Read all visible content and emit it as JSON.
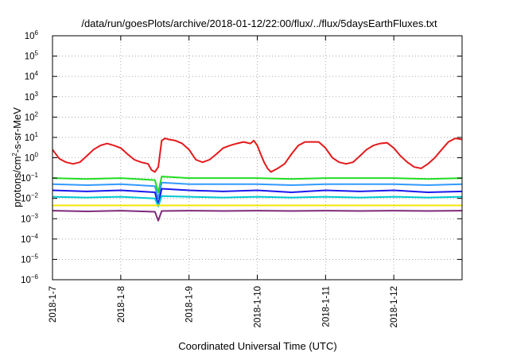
{
  "chart_data": {
    "type": "line",
    "title": "/data/run/goesPlots/archive/2018-01-12/22:00/flux/../flux/5daysEarthFluxes.txt",
    "xlabel": "Coordinated Universal Time (UTC)",
    "ylabel": {
      "prefix": "protons/cm",
      "sup": "2",
      "suffix": "-s-sr-MeV"
    },
    "yscale": "log",
    "ylim": [
      1e-06,
      1000000.0
    ],
    "xlim": [
      0,
      6
    ],
    "grid": true,
    "x_ticks": [
      {
        "x": 0,
        "label": "2018-1-7"
      },
      {
        "x": 1,
        "label": "2018-1-8"
      },
      {
        "x": 2,
        "label": "2018-1-9"
      },
      {
        "x": 3,
        "label": "2018-1-10"
      },
      {
        "x": 4,
        "label": "2018-1-11"
      },
      {
        "x": 5,
        "label": "2018-1-12"
      }
    ],
    "y_ticks": [
      {
        "exp": -6
      },
      {
        "exp": -5
      },
      {
        "exp": -4
      },
      {
        "exp": -3
      },
      {
        "exp": -2
      },
      {
        "exp": -1
      },
      {
        "exp": 0
      },
      {
        "exp": 1
      },
      {
        "exp": 2
      },
      {
        "exp": 3
      },
      {
        "exp": 4
      },
      {
        "exp": 5
      },
      {
        "exp": 6
      }
    ],
    "y_tick_base": "10",
    "series": [
      {
        "color": "#e41a1c",
        "points": [
          [
            0.0,
            2.5
          ],
          [
            0.1,
            0.9
          ],
          [
            0.2,
            0.6
          ],
          [
            0.3,
            0.5
          ],
          [
            0.4,
            0.6
          ],
          [
            0.5,
            1.2
          ],
          [
            0.6,
            2.5
          ],
          [
            0.7,
            4
          ],
          [
            0.8,
            5
          ],
          [
            0.9,
            4
          ],
          [
            1.0,
            3
          ],
          [
            1.1,
            1.5
          ],
          [
            1.2,
            0.8
          ],
          [
            1.3,
            0.6
          ],
          [
            1.4,
            0.5
          ],
          [
            1.45,
            0.25
          ],
          [
            1.5,
            0.2
          ],
          [
            1.55,
            0.35
          ],
          [
            1.6,
            7
          ],
          [
            1.65,
            9
          ],
          [
            1.7,
            8
          ],
          [
            1.8,
            7
          ],
          [
            1.9,
            5
          ],
          [
            2.0,
            2.5
          ],
          [
            2.1,
            0.8
          ],
          [
            2.2,
            0.6
          ],
          [
            2.3,
            0.8
          ],
          [
            2.4,
            1.5
          ],
          [
            2.5,
            3
          ],
          [
            2.6,
            4
          ],
          [
            2.7,
            5
          ],
          [
            2.8,
            6
          ],
          [
            2.9,
            5
          ],
          [
            2.95,
            7
          ],
          [
            3.0,
            4
          ],
          [
            3.05,
            1.5
          ],
          [
            3.1,
            0.6
          ],
          [
            3.15,
            0.3
          ],
          [
            3.2,
            0.2
          ],
          [
            3.3,
            0.3
          ],
          [
            3.4,
            0.5
          ],
          [
            3.5,
            1.5
          ],
          [
            3.6,
            4
          ],
          [
            3.7,
            6
          ],
          [
            3.8,
            6
          ],
          [
            3.9,
            6
          ],
          [
            4.0,
            3
          ],
          [
            4.1,
            1
          ],
          [
            4.2,
            0.6
          ],
          [
            4.3,
            0.5
          ],
          [
            4.4,
            0.6
          ],
          [
            4.5,
            1.2
          ],
          [
            4.6,
            2.5
          ],
          [
            4.7,
            4
          ],
          [
            4.8,
            5
          ],
          [
            4.9,
            5.5
          ],
          [
            5.0,
            3
          ],
          [
            5.1,
            1.2
          ],
          [
            5.2,
            0.6
          ],
          [
            5.3,
            0.35
          ],
          [
            5.4,
            0.3
          ],
          [
            5.5,
            0.5
          ],
          [
            5.6,
            1
          ],
          [
            5.7,
            2.5
          ],
          [
            5.8,
            6
          ],
          [
            5.9,
            9
          ],
          [
            6.0,
            8
          ]
        ]
      },
      {
        "color": "#22dd22",
        "points": [
          [
            0.0,
            0.1
          ],
          [
            0.5,
            0.09
          ],
          [
            1.0,
            0.1
          ],
          [
            1.5,
            0.08
          ],
          [
            1.55,
            0.02
          ],
          [
            1.6,
            0.12
          ],
          [
            2.0,
            0.1
          ],
          [
            2.5,
            0.1
          ],
          [
            3.0,
            0.1
          ],
          [
            3.5,
            0.09
          ],
          [
            4.0,
            0.1
          ],
          [
            4.5,
            0.1
          ],
          [
            5.0,
            0.1
          ],
          [
            5.5,
            0.09
          ],
          [
            6.0,
            0.1
          ]
        ]
      },
      {
        "color": "#3399ff",
        "points": [
          [
            0.0,
            0.05
          ],
          [
            0.5,
            0.045
          ],
          [
            1.0,
            0.05
          ],
          [
            1.5,
            0.04
          ],
          [
            1.55,
            0.01
          ],
          [
            1.6,
            0.06
          ],
          [
            2.0,
            0.05
          ],
          [
            2.5,
            0.05
          ],
          [
            3.0,
            0.05
          ],
          [
            3.5,
            0.045
          ],
          [
            4.0,
            0.05
          ],
          [
            4.5,
            0.05
          ],
          [
            5.0,
            0.05
          ],
          [
            5.5,
            0.045
          ],
          [
            6.0,
            0.05
          ]
        ]
      },
      {
        "color": "#1a1aee",
        "points": [
          [
            0.0,
            0.025
          ],
          [
            0.5,
            0.022
          ],
          [
            1.0,
            0.025
          ],
          [
            1.5,
            0.02
          ],
          [
            1.55,
            0.005
          ],
          [
            1.6,
            0.03
          ],
          [
            2.0,
            0.025
          ],
          [
            2.5,
            0.022
          ],
          [
            3.0,
            0.025
          ],
          [
            3.5,
            0.02
          ],
          [
            4.0,
            0.025
          ],
          [
            4.5,
            0.022
          ],
          [
            5.0,
            0.025
          ],
          [
            5.5,
            0.02
          ],
          [
            6.0,
            0.022
          ]
        ]
      },
      {
        "color": "#00c8d0",
        "points": [
          [
            0.0,
            0.012
          ],
          [
            0.5,
            0.011
          ],
          [
            1.0,
            0.012
          ],
          [
            1.5,
            0.01
          ],
          [
            1.55,
            0.004
          ],
          [
            1.6,
            0.013
          ],
          [
            2.0,
            0.012
          ],
          [
            2.5,
            0.011
          ],
          [
            3.0,
            0.012
          ],
          [
            3.5,
            0.011
          ],
          [
            4.0,
            0.012
          ],
          [
            4.5,
            0.011
          ],
          [
            5.0,
            0.012
          ],
          [
            5.5,
            0.011
          ],
          [
            6.0,
            0.012
          ]
        ]
      },
      {
        "color": "#f2e600",
        "points": [
          [
            0.0,
            0.0045
          ],
          [
            1.0,
            0.0045
          ],
          [
            2.0,
            0.0045
          ],
          [
            3.0,
            0.0045
          ],
          [
            4.0,
            0.0045
          ],
          [
            5.0,
            0.0045
          ],
          [
            6.0,
            0.0045
          ]
        ]
      },
      {
        "color": "#7f2a7a",
        "points": [
          [
            0.0,
            0.0025
          ],
          [
            0.5,
            0.0023
          ],
          [
            1.0,
            0.0025
          ],
          [
            1.5,
            0.0022
          ],
          [
            1.55,
            0.0008
          ],
          [
            1.6,
            0.0024
          ],
          [
            2.0,
            0.0025
          ],
          [
            2.5,
            0.0024
          ],
          [
            3.0,
            0.0025
          ],
          [
            3.5,
            0.0024
          ],
          [
            4.0,
            0.0025
          ],
          [
            4.5,
            0.0024
          ],
          [
            5.0,
            0.0025
          ],
          [
            5.5,
            0.0024
          ],
          [
            6.0,
            0.0025
          ]
        ]
      }
    ]
  }
}
